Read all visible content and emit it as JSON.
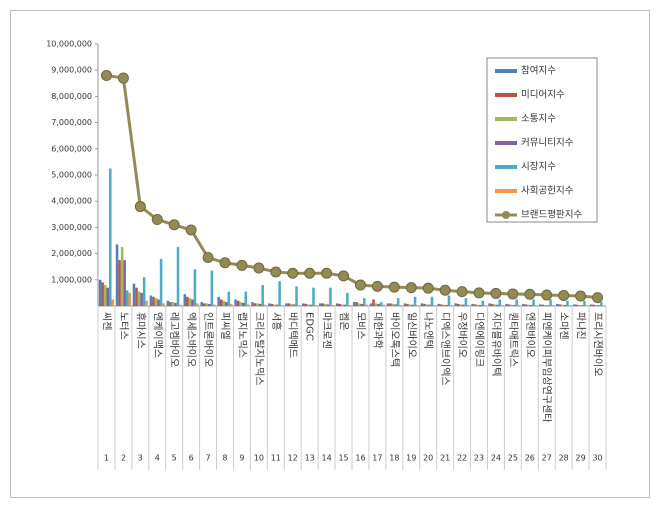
{
  "chart_data": {
    "type": "bar",
    "categories": [
      "씨젠",
      "노터스",
      "휴마시스",
      "엔케이맥스",
      "레고켐바이오",
      "엑세스바이오",
      "인트론바이오",
      "피씨엘",
      "랩지노믹스",
      "크리스탈지노믹스",
      "서흥",
      "바디텍메드",
      "EDGC",
      "마크로젠",
      "켐온",
      "모비스",
      "대한과학",
      "바이오톡스텍",
      "일신바이오",
      "나노엔텍",
      "디엑스앤브이엑스",
      "우정바이오",
      "디엔에이링크",
      "지더블유바이텍",
      "퀀타매트릭스",
      "엔젠바이오",
      "피엔케이피부임상연구센타",
      "소마젠",
      "파나진",
      "프리시젼바이오"
    ],
    "rank_labels": [
      "1",
      "2",
      "3",
      "4",
      "5",
      "6",
      "7",
      "8",
      "9",
      "10",
      "11",
      "12",
      "13",
      "14",
      "15",
      "16",
      "17",
      "18",
      "19",
      "20",
      "21",
      "22",
      "23",
      "24",
      "25",
      "26",
      "27",
      "28",
      "29",
      "30"
    ],
    "ylim": [
      0,
      10000000
    ],
    "yticks": [
      {
        "value": 1000000,
        "label": "1,000,000"
      },
      {
        "value": 2000000,
        "label": "2,000,000"
      },
      {
        "value": 3000000,
        "label": "3,000,000"
      },
      {
        "value": 4000000,
        "label": "4,000,000"
      },
      {
        "value": 5000000,
        "label": "5,000,000"
      },
      {
        "value": 6000000,
        "label": "6,000,000"
      },
      {
        "value": 7000000,
        "label": "7,000,000"
      },
      {
        "value": 8000000,
        "label": "8,000,000"
      },
      {
        "value": 9000000,
        "label": "9,000,000"
      },
      {
        "value": 10000000,
        "label": "10,000,000"
      }
    ],
    "series": [
      {
        "name": "참여지수",
        "color": "#4f81bd",
        "values": [
          1000000,
          2350000,
          850000,
          400000,
          200000,
          450000,
          150000,
          350000,
          250000,
          150000,
          100000,
          100000,
          100000,
          100000,
          100000,
          150000,
          100000,
          100000,
          100000,
          100000,
          80000,
          100000,
          80000,
          100000,
          80000,
          80000,
          60000,
          80000,
          60000,
          60000
        ]
      },
      {
        "name": "미디어지수",
        "color": "#c0504d",
        "values": [
          900000,
          1750000,
          700000,
          350000,
          150000,
          350000,
          100000,
          250000,
          200000,
          100000,
          80000,
          100000,
          80000,
          100000,
          80000,
          150000,
          250000,
          100000,
          80000,
          80000,
          60000,
          80000,
          60000,
          80000,
          60000,
          60000,
          50000,
          60000,
          50000,
          50000
        ]
      },
      {
        "name": "소통지수",
        "color": "#9bbb59",
        "values": [
          800000,
          2250000,
          550000,
          300000,
          150000,
          300000,
          100000,
          200000,
          150000,
          100000,
          60000,
          80000,
          60000,
          80000,
          60000,
          100000,
          100000,
          80000,
          60000,
          60000,
          50000,
          60000,
          50000,
          60000,
          50000,
          50000,
          40000,
          50000,
          40000,
          40000
        ]
      },
      {
        "name": "커뮤니티지수",
        "color": "#8064a2",
        "values": [
          700000,
          1750000,
          500000,
          250000,
          120000,
          250000,
          80000,
          150000,
          120000,
          80000,
          50000,
          60000,
          50000,
          60000,
          50000,
          80000,
          80000,
          60000,
          50000,
          50000,
          40000,
          50000,
          40000,
          50000,
          40000,
          40000,
          30000,
          40000,
          30000,
          30000
        ]
      },
      {
        "name": "시장지수",
        "color": "#4bacc6",
        "values": [
          5250000,
          600000,
          1100000,
          1800000,
          2250000,
          1400000,
          1350000,
          550000,
          550000,
          800000,
          950000,
          750000,
          700000,
          700000,
          500000,
          300000,
          150000,
          300000,
          350000,
          350000,
          400000,
          300000,
          200000,
          250000,
          250000,
          250000,
          250000,
          200000,
          200000,
          150000
        ]
      },
      {
        "name": "사회공헌지수",
        "color": "#f79646",
        "values": [
          250000,
          500000,
          200000,
          100000,
          50000,
          100000,
          50000,
          80000,
          60000,
          50000,
          40000,
          40000,
          40000,
          40000,
          40000,
          50000,
          50000,
          40000,
          40000,
          40000,
          30000,
          40000,
          30000,
          40000,
          30000,
          30000,
          30000,
          30000,
          30000,
          30000
        ]
      },
      {
        "name": "브랜드평판지수",
        "color": "#948a54",
        "type": "line",
        "values": [
          8800000,
          8700000,
          3800000,
          3300000,
          3100000,
          2900000,
          1850000,
          1650000,
          1550000,
          1450000,
          1300000,
          1250000,
          1250000,
          1250000,
          1150000,
          800000,
          750000,
          720000,
          700000,
          680000,
          600000,
          550000,
          500000,
          480000,
          460000,
          450000,
          420000,
          400000,
          380000,
          320000
        ]
      }
    ]
  }
}
